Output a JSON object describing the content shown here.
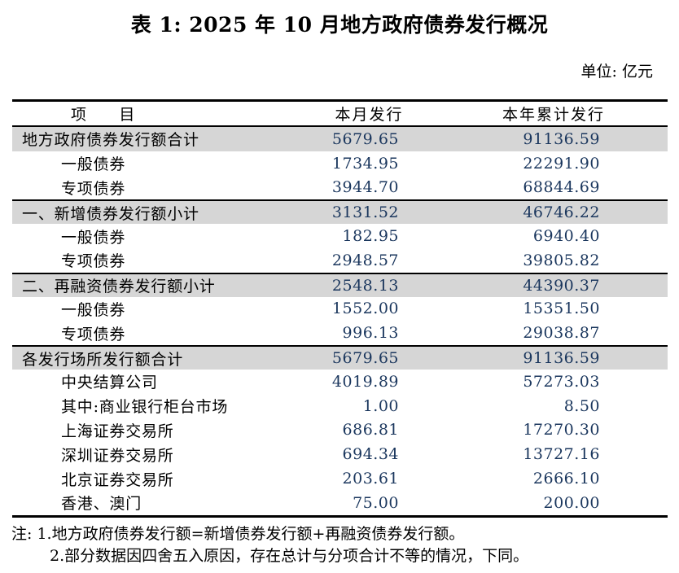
{
  "page": {
    "title": "表 1: 2025 年 10 月地方政府债券发行概况",
    "unit_label": "单位: 亿元"
  },
  "table": {
    "columns": [
      "项　　目",
      "本月发行",
      "本年累计发行"
    ],
    "rows": [
      {
        "item": "地方政府债券发行额合计",
        "month": "5679.65",
        "ytd": "91136.59",
        "section": true,
        "indent": false
      },
      {
        "item": "一般债券",
        "month": "1734.95",
        "ytd": "22291.90",
        "section": false,
        "indent": true
      },
      {
        "item": "专项债券",
        "month": "3944.70",
        "ytd": "68844.69",
        "section": false,
        "indent": true
      },
      {
        "item": "一、新增债券发行额小计",
        "month": "3131.52",
        "ytd": "46746.22",
        "section": true,
        "indent": false
      },
      {
        "item": "一般债券",
        "month": "182.95",
        "ytd": "6940.40",
        "section": false,
        "indent": true
      },
      {
        "item": "专项债券",
        "month": "2948.57",
        "ytd": "39805.82",
        "section": false,
        "indent": true
      },
      {
        "item": "二、再融资债券发行额小计",
        "month": "2548.13",
        "ytd": "44390.37",
        "section": true,
        "indent": false
      },
      {
        "item": "一般债券",
        "month": "1552.00",
        "ytd": "15351.50",
        "section": false,
        "indent": true
      },
      {
        "item": "专项债券",
        "month": "996.13",
        "ytd": "29038.87",
        "section": false,
        "indent": true
      },
      {
        "item": "各发行场所发行额合计",
        "month": "5679.65",
        "ytd": "91136.59",
        "section": true,
        "indent": false
      },
      {
        "item": "中央结算公司",
        "month": "4019.89",
        "ytd": "57273.03",
        "section": false,
        "indent": true
      },
      {
        "item": "其中:商业银行柜台市场",
        "month": "1.00",
        "ytd": "8.50",
        "section": false,
        "indent": true
      },
      {
        "item": "上海证券交易所",
        "month": "686.81",
        "ytd": "17270.30",
        "section": false,
        "indent": true
      },
      {
        "item": "深圳证券交易所",
        "month": "694.34",
        "ytd": "13727.16",
        "section": false,
        "indent": true
      },
      {
        "item": "北京证券交易所",
        "month": "203.61",
        "ytd": "2666.10",
        "section": false,
        "indent": true
      },
      {
        "item": "香港、澳门",
        "month": "75.00",
        "ytd": "200.00",
        "section": false,
        "indent": true
      }
    ]
  },
  "notes": {
    "prefix": "注: ",
    "items": [
      "1.地方政府债券发行额=新增债券发行额+再融资债券发行额。",
      "2.部分数据因四舍五入原因，存在总计与分项合计不等的情况，下同。"
    ]
  },
  "colors": {
    "section_row_bg": "#d6d6d6",
    "number_color": "#1a365d",
    "text_color": "#000000"
  }
}
